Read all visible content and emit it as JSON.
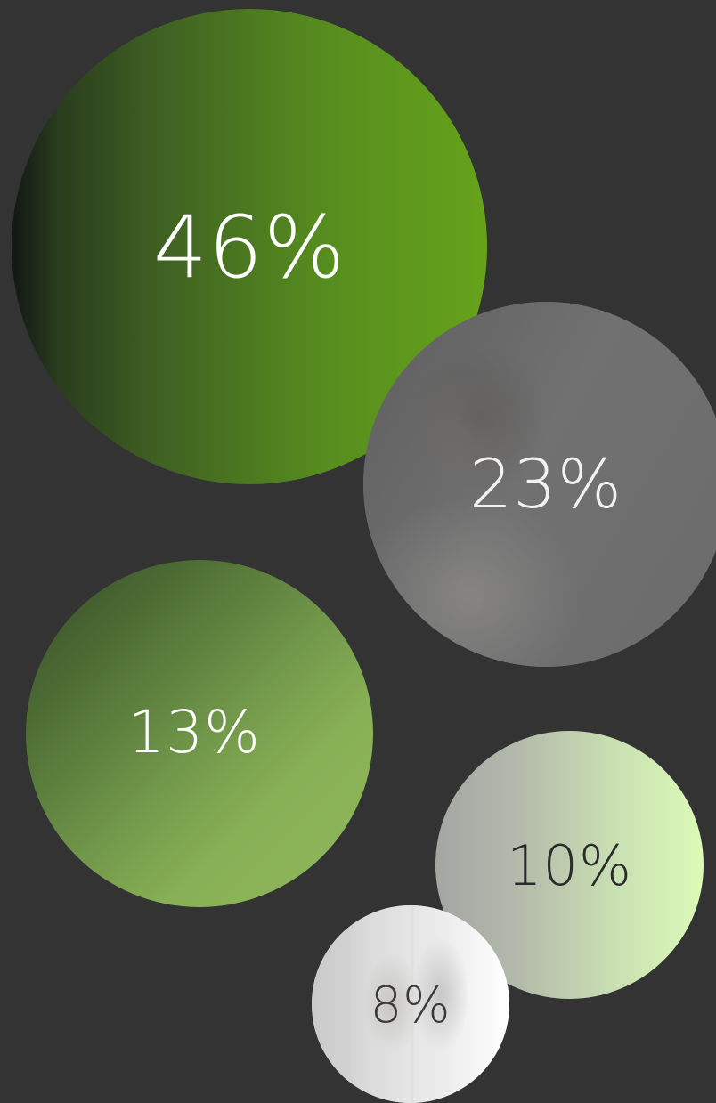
{
  "chart_data": {
    "type": "bubble",
    "title": "",
    "series": [
      {
        "label": "46%",
        "value": 46,
        "fill": "gradient-green-dark"
      },
      {
        "label": "23%",
        "value": 23,
        "fill": "photo"
      },
      {
        "label": "13%",
        "value": 13,
        "fill": "gradient-green-mid"
      },
      {
        "label": "10%",
        "value": 10,
        "fill": "gradient-green-light"
      },
      {
        "label": "8%",
        "value": 8,
        "fill": "photo"
      }
    ],
    "colors": {
      "background": "#333333",
      "green_dark_start": "#121714",
      "green_dark_end": "#66a31a",
      "green_mid_start": "#35492a",
      "green_mid_end": "#8fb65a",
      "green_light_start": "#a5a6a3",
      "green_light_end": "#dcfab7"
    }
  }
}
